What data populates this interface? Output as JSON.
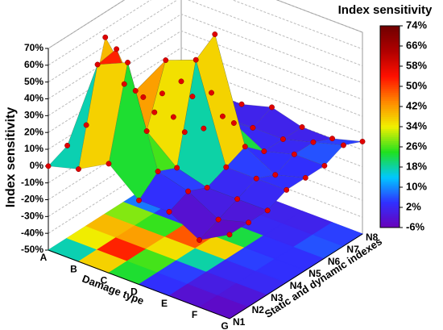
{
  "chart_data": {
    "type": "surface3d",
    "title": "Index sensitivity",
    "zlabel": "Index sensitivity",
    "xlabel": "Damage type",
    "ylabel": "Static and dynamic indexes",
    "x": [
      "A",
      "B",
      "C",
      "D",
      "E",
      "F",
      "G"
    ],
    "y": [
      "N1",
      "N2",
      "N3",
      "N4",
      "N5",
      "N6",
      "N7",
      "N8"
    ],
    "values": [
      [
        0,
        5,
        10,
        55,
        20,
        5,
        0,
        0
      ],
      [
        5,
        60,
        62,
        30,
        10,
        0,
        5,
        0
      ],
      [
        15,
        68,
        20,
        55,
        5,
        0,
        0,
        0
      ],
      [
        0,
        10,
        5,
        62,
        70,
        10,
        0,
        5
      ],
      [
        0,
        5,
        0,
        5,
        10,
        0,
        0,
        0
      ],
      [
        -10,
        -5,
        0,
        5,
        0,
        5,
        5,
        0
      ],
      [
        0,
        0,
        0,
        5,
        5,
        5,
        10,
        5
      ]
    ],
    "zlim": [
      -50,
      70
    ],
    "zticks": [
      {
        "value": -50,
        "label": "-50%"
      },
      {
        "value": -40,
        "label": "-40%"
      },
      {
        "value": -30,
        "label": "-30%"
      },
      {
        "value": -20,
        "label": "-20%"
      },
      {
        "value": -10,
        "label": "-10%"
      },
      {
        "value": 0,
        "label": "0%"
      },
      {
        "value": 10,
        "label": "10%"
      },
      {
        "value": 20,
        "label": "20%"
      },
      {
        "value": 30,
        "label": "30%"
      },
      {
        "value": 40,
        "label": "40%"
      },
      {
        "value": 50,
        "label": "50%"
      },
      {
        "value": 60,
        "label": "60%"
      },
      {
        "value": 70,
        "label": "70%"
      }
    ],
    "clim": [
      -6,
      74
    ],
    "cticks": [
      {
        "value": -6,
        "label": "-6%"
      },
      {
        "value": 2,
        "label": "2%"
      },
      {
        "value": 10,
        "label": "10%"
      },
      {
        "value": 18,
        "label": "18%"
      },
      {
        "value": 26,
        "label": "26%"
      },
      {
        "value": 34,
        "label": "34%"
      },
      {
        "value": 42,
        "label": "42%"
      },
      {
        "value": 50,
        "label": "50%"
      },
      {
        "value": 58,
        "label": "58%"
      },
      {
        "value": 66,
        "label": "66%"
      },
      {
        "value": 74,
        "label": "74%"
      }
    ],
    "colormap": [
      "#6a00b8",
      "#3030ff",
      "#00c8ff",
      "#20e020",
      "#f0f000",
      "#ff8800",
      "#ff1000",
      "#b00000",
      "#700000"
    ],
    "point_color": "#e00000",
    "grid": true
  }
}
